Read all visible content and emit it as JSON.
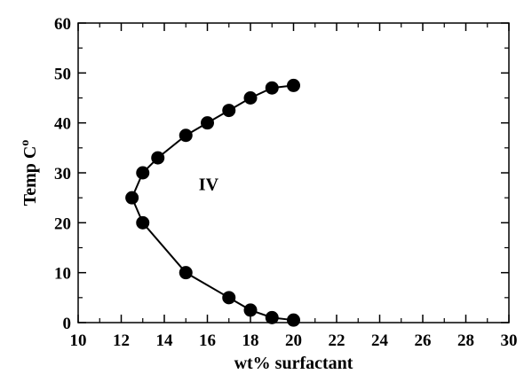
{
  "chart_data": {
    "type": "scatter",
    "title": "",
    "xlabel": "wt% surfactant",
    "ylabel": "Temp C",
    "ylabel_superscript": "o",
    "xlim": [
      10,
      30
    ],
    "ylim": [
      0,
      60
    ],
    "x_ticks": [
      10,
      12,
      14,
      16,
      18,
      20,
      22,
      24,
      26,
      28,
      30
    ],
    "y_ticks": [
      0,
      10,
      20,
      30,
      40,
      50,
      60
    ],
    "grid": false,
    "legend": "none",
    "series": [
      {
        "points": [
          {
            "x": 20.0,
            "y": 47.5
          },
          {
            "x": 19.0,
            "y": 47.0
          },
          {
            "x": 18.0,
            "y": 45.0
          },
          {
            "x": 17.0,
            "y": 42.5
          },
          {
            "x": 16.0,
            "y": 40.0
          },
          {
            "x": 15.0,
            "y": 37.5
          },
          {
            "x": 13.7,
            "y": 33.0
          },
          {
            "x": 13.0,
            "y": 30.0
          },
          {
            "x": 12.5,
            "y": 25.0
          },
          {
            "x": 13.0,
            "y": 20.0
          },
          {
            "x": 15.0,
            "y": 10.0
          },
          {
            "x": 17.0,
            "y": 5.0
          },
          {
            "x": 18.0,
            "y": 2.5
          },
          {
            "x": 19.0,
            "y": 1.0
          },
          {
            "x": 20.0,
            "y": 0.5
          }
        ],
        "connected": true,
        "marker": "filled-circle",
        "color": "#000000"
      }
    ],
    "annotations": [
      {
        "text": "IV",
        "x": 15.6,
        "y": 26.5
      }
    ]
  }
}
